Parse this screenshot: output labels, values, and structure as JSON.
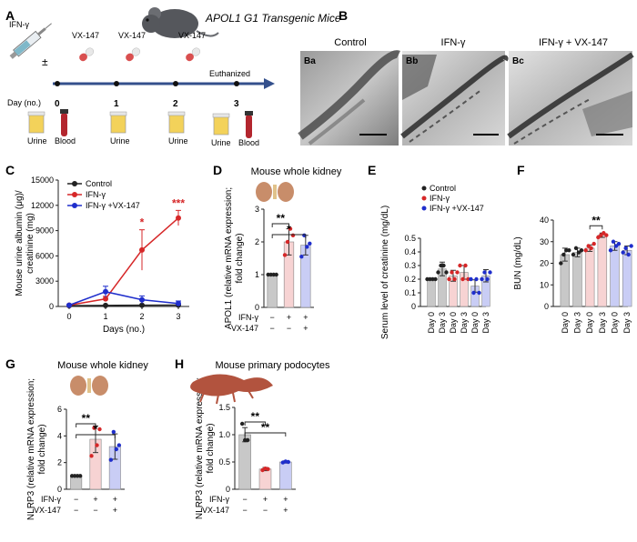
{
  "panel_letters": [
    "A",
    "B",
    "C",
    "D",
    "E",
    "F",
    "G",
    "H"
  ],
  "timeline": {
    "title": "APOL1 G1 Transgenic Mice",
    "ifn": "IFN-γ",
    "plusminus": "±",
    "vx": "VX-147",
    "day_label": "Day (no.)",
    "days": [
      "0",
      "1",
      "2",
      "3"
    ],
    "euthanized": "Euthanized",
    "urine": "Urine",
    "blood": "Blood"
  },
  "micrographs": [
    {
      "title": "Control",
      "tag": "Ba"
    },
    {
      "title": "IFN-γ",
      "tag": "Bb"
    },
    {
      "title": "IFN-γ + VX-147",
      "tag": "Bc"
    }
  ],
  "colors": {
    "control": "#222222",
    "ifn": "#d62728",
    "vx": "#1f2ecc",
    "bar_control": "#c8c8c8",
    "bar_ifn": "#f7d3d3",
    "bar_vx": "#c9cdf5",
    "sig_red": "#d62728"
  },
  "treat_labels": {
    "ifn": "IFN-γ",
    "vx": "VX-147",
    "plus": "+",
    "minus": "−"
  },
  "chart_data": [
    {
      "panel": "C",
      "type": "line",
      "xlabel": "Days (no.)",
      "ylabel": "Mouse urine albumin (μg)/ creatinine (mg)",
      "x": [
        0,
        1,
        2,
        3
      ],
      "xticks": [
        "0",
        "1",
        "2",
        "3"
      ],
      "ylim": [
        0,
        15000
      ],
      "yticks": [
        "0",
        "3000",
        "6000",
        "9000",
        "12000",
        "15000"
      ],
      "legend": "top-left",
      "series": [
        {
          "name": "Control",
          "values": [
            100,
            120,
            150,
            160
          ],
          "err": [
            40,
            40,
            40,
            40
          ],
          "color": "#222222"
        },
        {
          "name": "IFN-γ",
          "values": [
            150,
            900,
            6700,
            10500
          ],
          "err": [
            80,
            300,
            2400,
            900
          ],
          "color": "#d62728"
        },
        {
          "name": "IFN-γ +VX-147",
          "values": [
            150,
            1750,
            800,
            350
          ],
          "err": [
            80,
            650,
            450,
            300
          ],
          "color": "#1f2ecc"
        }
      ],
      "significance": [
        {
          "x": 2,
          "label": "*"
        },
        {
          "x": 3,
          "label": "***"
        }
      ]
    },
    {
      "panel": "D",
      "type": "bar",
      "title": "Mouse whole kidney",
      "ylabel": "APOL1 (relative mRNA expression; fold change)",
      "ylim": [
        0,
        3
      ],
      "yticks": [
        "0",
        "1",
        "2",
        "3"
      ],
      "categories": [
        "Control",
        "IFN-γ",
        "IFN-γ + VX-147"
      ],
      "values": [
        1.0,
        2.0,
        1.9
      ],
      "err": [
        0.02,
        0.4,
        0.3
      ],
      "points": [
        [
          1,
          1,
          1,
          1
        ],
        [
          1.6,
          2.0,
          2.4,
          2.2
        ],
        [
          1.55,
          2.2,
          1.85,
          1.95
        ]
      ],
      "ifn": [
        "−",
        "+",
        "+"
      ],
      "vx": [
        "−",
        "−",
        "+"
      ],
      "significance": [
        {
          "from": 0,
          "to": 1,
          "label": "**"
        },
        {
          "from": 0,
          "to": 2,
          "label": "*"
        }
      ]
    },
    {
      "panel": "E",
      "type": "bar",
      "ylabel": "Serum level of creatinine (mg/dL)",
      "ylim": [
        0,
        0.5
      ],
      "yticks": [
        "0",
        "0.1",
        "0.2",
        "0.3",
        "0.4",
        "0.5"
      ],
      "categories": [
        "Day 0",
        "Day 3",
        "Day 0",
        "Day 3",
        "Day 0",
        "Day 3"
      ],
      "groups": [
        "Control",
        "Control",
        "IFN-γ",
        "IFN-γ",
        "IFN-γ +VX-147",
        "IFN-γ +VX-147"
      ],
      "values": [
        0.2,
        0.275,
        0.225,
        0.25,
        0.15,
        0.225
      ],
      "err": [
        0.005,
        0.05,
        0.04,
        0.05,
        0.045,
        0.045
      ],
      "points": [
        [
          0.2,
          0.2,
          0.2,
          0.2
        ],
        [
          0.25,
          0.3,
          0.3,
          0.25
        ],
        [
          0.2,
          0.25,
          0.2,
          0.25
        ],
        [
          0.3,
          0.2,
          0.3,
          0.2
        ],
        [
          0.2,
          0.1,
          0.2,
          0.1
        ],
        [
          0.2,
          0.25,
          0.2,
          0.25
        ]
      ],
      "legend": [
        "Control",
        "IFN-γ",
        "IFN-γ +VX-147"
      ]
    },
    {
      "panel": "F",
      "type": "bar",
      "ylabel": "BUN (mg/dL)",
      "ylim": [
        0,
        40
      ],
      "yticks": [
        "0",
        "10",
        "20",
        "30",
        "40"
      ],
      "categories": [
        "Day 0",
        "Day 3",
        "Day 0",
        "Day 3",
        "Day 0",
        "Day 3"
      ],
      "groups": [
        "Control",
        "Control",
        "IFN-γ",
        "IFN-γ",
        "IFN-γ +VX-147",
        "IFN-γ +VX-147"
      ],
      "values": [
        24,
        25,
        27,
        33,
        28,
        26
      ],
      "err": [
        3,
        2,
        1.5,
        1,
        2,
        2
      ],
      "points": [
        [
          20,
          24,
          26,
          26
        ],
        [
          24,
          27,
          25,
          26
        ],
        [
          26,
          28,
          27,
          29
        ],
        [
          32,
          33,
          34,
          33
        ],
        [
          26,
          30,
          28,
          29
        ],
        [
          25,
          27,
          24,
          28
        ]
      ],
      "significance": [
        {
          "from": 2,
          "to": 3,
          "label": "**"
        }
      ]
    },
    {
      "panel": "G",
      "type": "bar",
      "title": "Mouse whole kidney",
      "ylabel": "NLRP3 (relative mRNA expression; fold change)",
      "ylim": [
        0,
        6
      ],
      "yticks": [
        "0",
        "2",
        "4",
        "6"
      ],
      "categories": [
        "Control",
        "IFN-γ",
        "IFN-γ + VX-147"
      ],
      "values": [
        1.0,
        3.75,
        3.2
      ],
      "err": [
        0.02,
        1.0,
        0.95
      ],
      "points": [
        [
          1,
          1,
          1,
          1
        ],
        [
          2.5,
          4.6,
          3.3,
          4.5
        ],
        [
          2.2,
          4.3,
          3.0,
          3.3
        ]
      ],
      "ifn": [
        "−",
        "+",
        "+"
      ],
      "vx": [
        "−",
        "−",
        "+"
      ],
      "significance": [
        {
          "from": 0,
          "to": 1,
          "label": "**"
        },
        {
          "from": 0,
          "to": 2,
          "label": "*"
        }
      ]
    },
    {
      "panel": "H",
      "type": "bar",
      "title": "Mouse primary podocytes",
      "ylabel": "NLRP3 (relative mRNA expression; fold change)",
      "ylim": [
        0,
        1.5
      ],
      "yticks": [
        "0",
        "0.5",
        "1.0",
        "1.5"
      ],
      "categories": [
        "Control",
        "IFN-γ",
        "IFN-γ + VX-147"
      ],
      "values": [
        1.0,
        0.37,
        0.5
      ],
      "err": [
        0.13,
        0.03,
        0.02
      ],
      "points": [
        [
          1.2,
          0.9,
          0.9
        ],
        [
          0.35,
          0.38,
          0.37
        ],
        [
          0.49,
          0.51,
          0.5
        ]
      ],
      "ifn": [
        "−",
        "+",
        "+"
      ],
      "vx": [
        "−",
        "−",
        "+"
      ],
      "significance": [
        {
          "from": 0,
          "to": 1,
          "label": "**"
        },
        {
          "from": 0,
          "to": 2,
          "label": "**"
        }
      ]
    }
  ]
}
